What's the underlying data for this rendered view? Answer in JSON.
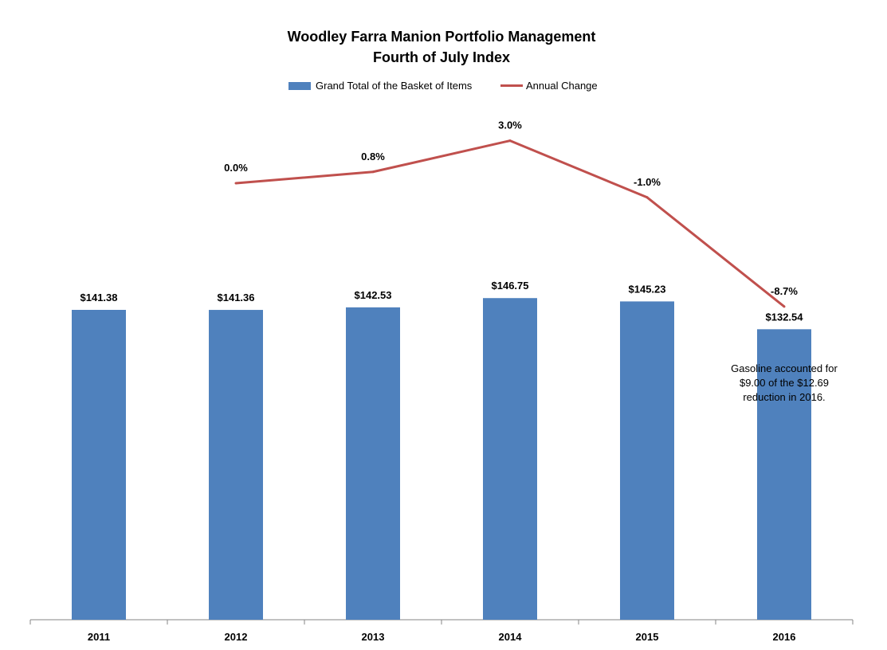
{
  "chart_data": {
    "type": "bar",
    "title": "Woodley Farra Manion Portfolio Management",
    "subtitle": "Fourth of July Index",
    "categories": [
      "2011",
      "2012",
      "2013",
      "2014",
      "2015",
      "2016"
    ],
    "series": [
      {
        "name": "Grand Total of the Basket of Items",
        "type": "bar",
        "color": "#4f81bd",
        "values": [
          141.38,
          141.36,
          142.53,
          146.75,
          145.23,
          132.54
        ],
        "labels": [
          "$141.38",
          "$141.36",
          "$142.53",
          "$146.75",
          "$145.23",
          "$132.54"
        ]
      },
      {
        "name": "Annual Change",
        "type": "line",
        "color": "#c0504d",
        "values": [
          null,
          0.0,
          0.8,
          3.0,
          -1.0,
          -8.7
        ],
        "labels": [
          "",
          "0.0%",
          "0.8%",
          "3.0%",
          "-1.0%",
          "-8.7%"
        ]
      }
    ],
    "legend_position": "top",
    "grid": false,
    "annotation": {
      "category": "2016",
      "lines": [
        "Gasoline accounted for",
        "$9.00 of the $12.69",
        "reduction in 2016."
      ]
    }
  }
}
